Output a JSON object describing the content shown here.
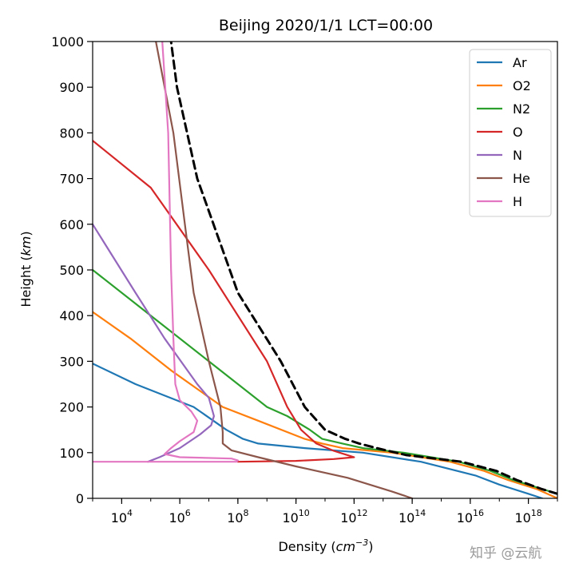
{
  "chart_data": {
    "type": "line",
    "title": "Beijing  2020/1/1  LCT=00:00",
    "xlabel": "Density (cm⁻³)",
    "xlabel_parts": {
      "pre": "Density (",
      "var": "cm",
      "exp": "−3",
      "post": ")"
    },
    "ylabel": "Height (km)",
    "ylabel_parts": {
      "pre": "Height (",
      "var": "km",
      "post": ")"
    },
    "x_scale": "log",
    "xlim": [
      1000,
      1e+19
    ],
    "ylim": [
      0,
      1000
    ],
    "x_ticks": [
      {
        "base": "10",
        "exp": "4"
      },
      {
        "base": "10",
        "exp": "6"
      },
      {
        "base": "10",
        "exp": "8"
      },
      {
        "base": "10",
        "exp": "10"
      },
      {
        "base": "10",
        "exp": "12"
      },
      {
        "base": "10",
        "exp": "14"
      },
      {
        "base": "10",
        "exp": "16"
      },
      {
        "base": "10",
        "exp": "18"
      }
    ],
    "y_ticks": [
      "0",
      "100",
      "200",
      "300",
      "400",
      "500",
      "600",
      "700",
      "800",
      "900",
      "1000"
    ],
    "grid": false,
    "legend_position": "top-right",
    "series": [
      {
        "name": "Ar",
        "color": "#1f77b4",
        "points": [
          [
            3e+18,
            0
          ],
          [
            1e+18,
            10
          ],
          [
            1e+17,
            30
          ],
          [
            1.5e+16,
            50
          ],
          [
            200000000000000.0,
            80
          ],
          [
            2000000000000.0,
            100
          ],
          [
            20000000000.0,
            110
          ],
          [
            500000000.0,
            120
          ],
          [
            150000000.0,
            130
          ],
          [
            40000000.0,
            150
          ],
          [
            3000000.0,
            200
          ],
          [
            30000.0,
            250
          ],
          [
            1000,
            295
          ]
        ]
      },
      {
        "name": "O2",
        "color": "#ff7f0e",
        "points": [
          [
            1e+19,
            0
          ],
          [
            2e+18,
            20
          ],
          [
            2e+17,
            40
          ],
          [
            3e+16,
            60
          ],
          [
            2000000000000000.0,
            80
          ],
          [
            20000000000000.0,
            100
          ],
          [
            400000000000.0,
            110
          ],
          [
            80000000000.0,
            120
          ],
          [
            20000000000.0,
            130
          ],
          [
            500000000.0,
            170
          ],
          [
            30000000.0,
            200
          ],
          [
            500000.0,
            280
          ],
          [
            20000.0,
            350
          ],
          [
            1000,
            408
          ]
        ]
      },
      {
        "name": "N2",
        "color": "#2ca02c",
        "points": [
          [
            1e+19,
            10
          ],
          [
            3e+17,
            40
          ],
          [
            5e+16,
            60
          ],
          [
            4000000000000000.0,
            80
          ],
          [
            50000000000000.0,
            100
          ],
          [
            2000000000000.0,
            110
          ],
          [
            400000000000.0,
            120
          ],
          [
            80000000000.0,
            130
          ],
          [
            30000000000.0,
            150
          ],
          [
            5000000000.0,
            180
          ],
          [
            1000000000.0,
            200
          ],
          [
            10000000.0,
            300
          ],
          [
            100000.0,
            400
          ],
          [
            1000,
            500
          ]
        ]
      },
      {
        "name": "O",
        "color": "#d62728",
        "points": [
          [
            100000000.0,
            80
          ],
          [
            10000000000.0,
            82
          ],
          [
            200000000000.0,
            86
          ],
          [
            1000000000000.0,
            90
          ],
          [
            500000000000.0,
            96
          ],
          [
            200000000000.0,
            104
          ],
          [
            50000000000.0,
            120
          ],
          [
            15000000000.0,
            150
          ],
          [
            5000000000.0,
            200
          ],
          [
            1000000000.0,
            300
          ],
          [
            10000000.0,
            500
          ],
          [
            100000.0,
            680
          ],
          [
            1000,
            783
          ]
        ]
      },
      {
        "name": "N",
        "color": "#9467bd",
        "points": [
          [
            80000.0,
            80
          ],
          [
            200000.0,
            90
          ],
          [
            1000000.0,
            110
          ],
          [
            5000000.0,
            140
          ],
          [
            12000000.0,
            160
          ],
          [
            15000000.0,
            180
          ],
          [
            10000000.0,
            220
          ],
          [
            4000000.0,
            250
          ],
          [
            300000.0,
            350
          ],
          [
            30000.0,
            450
          ],
          [
            1000,
            600
          ]
        ]
      },
      {
        "name": "He",
        "color": "#8c564b",
        "points": [
          [
            100000000000000.0,
            0
          ],
          [
            20000000000000.0,
            15
          ],
          [
            600000000000.0,
            45
          ],
          [
            10000000000.0,
            70
          ],
          [
            500000000.0,
            90
          ],
          [
            60000000.0,
            105
          ],
          [
            30000000.0,
            120
          ],
          [
            30000000.0,
            145
          ],
          [
            25000000.0,
            200
          ],
          [
            10000000.0,
            300
          ],
          [
            3000000.0,
            450
          ],
          [
            1500000.0,
            600
          ],
          [
            600000.0,
            800
          ],
          [
            150000.0,
            1000
          ]
        ]
      },
      {
        "name": "H",
        "color": "#e377c2",
        "points": [
          [
            1000,
            80
          ],
          [
            90000000.0,
            80
          ],
          [
            100000000.0,
            83
          ],
          [
            60000000.0,
            87
          ],
          [
            1000000.0,
            90
          ],
          [
            300000.0,
            97
          ],
          [
            500000.0,
            110
          ],
          [
            1000000.0,
            125
          ],
          [
            3000000.0,
            145
          ],
          [
            4000000.0,
            170
          ],
          [
            2500000.0,
            190
          ],
          [
            1000000.0,
            215
          ],
          [
            700000.0,
            250
          ],
          [
            600000.0,
            350
          ],
          [
            500000.0,
            500
          ],
          [
            400000.0,
            800
          ],
          [
            250000.0,
            1000
          ]
        ]
      },
      {
        "name": "",
        "color": "#000000",
        "dashed": true,
        "points": [
          [
            1e+19,
            10
          ],
          [
            3e+18,
            20
          ],
          [
            4e+17,
            40
          ],
          [
            8e+16,
            60
          ],
          [
            5000000000000000.0,
            80
          ],
          [
            60000000000000.0,
            95
          ],
          [
            6000000000000.0,
            110
          ],
          [
            1500000000000.0,
            120
          ],
          [
            500000000000.0,
            130
          ],
          [
            100000000000.0,
            150
          ],
          [
            20000000000.0,
            200
          ],
          [
            3000000000.0,
            300
          ],
          [
            100000000.0,
            450
          ],
          [
            4000000.0,
            700
          ],
          [
            800000.0,
            900
          ],
          [
            500000.0,
            1000
          ]
        ]
      }
    ]
  },
  "watermark": "知乎 @云航"
}
